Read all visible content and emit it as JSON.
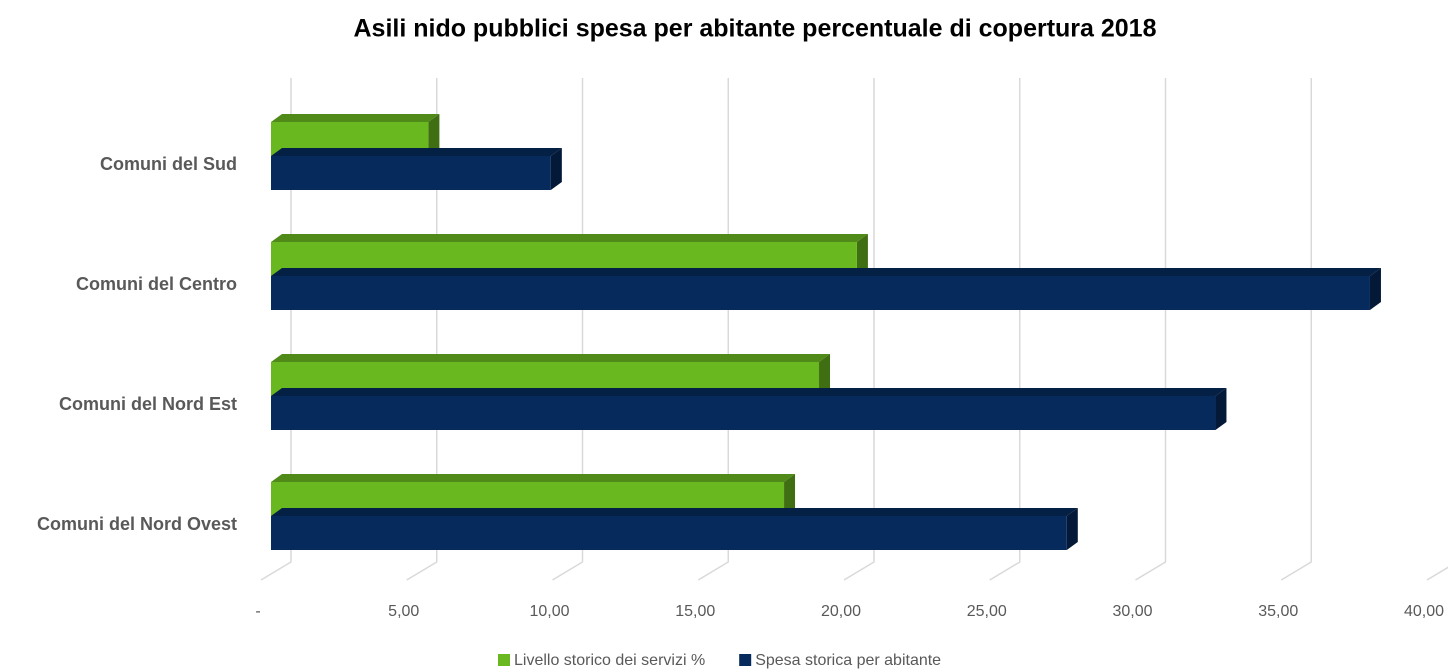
{
  "chart_data": {
    "type": "bar",
    "orientation": "horizontal",
    "three_d": true,
    "title": "Asili nido pubblici spesa per abitante percentuale di copertura 2018",
    "categories": [
      "Comuni del Sud",
      "Comuni del Centro",
      "Comuni del Nord Est",
      "Comuni del Nord Ovest"
    ],
    "series": [
      {
        "name": "Livello storico dei servizi %",
        "color": "#6ab820",
        "values": [
          5.4,
          20.1,
          18.8,
          17.6
        ]
      },
      {
        "name": "Spesa storica per abitante",
        "color": "#062a5c",
        "values": [
          9.6,
          37.7,
          32.4,
          27.3
        ]
      }
    ],
    "xlim": [
      0,
      40
    ],
    "xticks": [
      {
        "value": 0,
        "label": "-"
      },
      {
        "value": 5,
        "label": "5,00"
      },
      {
        "value": 10,
        "label": "10,00"
      },
      {
        "value": 15,
        "label": "15,00"
      },
      {
        "value": 20,
        "label": "20,00"
      },
      {
        "value": 25,
        "label": "25,00"
      },
      {
        "value": 30,
        "label": "30,00"
      },
      {
        "value": 35,
        "label": "35,00"
      },
      {
        "value": 40,
        "label": "40,00"
      }
    ],
    "grid": true,
    "legend": "bottom"
  }
}
